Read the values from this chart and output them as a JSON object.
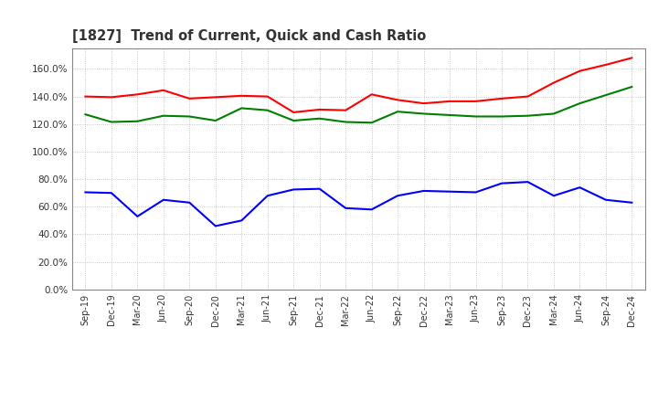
{
  "title": "[1827]  Trend of Current, Quick and Cash Ratio",
  "x_labels": [
    "Sep-19",
    "Dec-19",
    "Mar-20",
    "Jun-20",
    "Sep-20",
    "Dec-20",
    "Mar-21",
    "Jun-21",
    "Sep-21",
    "Dec-21",
    "Mar-22",
    "Jun-22",
    "Sep-22",
    "Dec-22",
    "Mar-23",
    "Jun-23",
    "Sep-23",
    "Dec-23",
    "Mar-24",
    "Jun-24",
    "Sep-24",
    "Dec-24"
  ],
  "current_ratio": [
    140.0,
    139.5,
    141.5,
    144.5,
    138.5,
    139.5,
    140.5,
    140.0,
    128.5,
    130.5,
    130.0,
    141.5,
    137.5,
    135.0,
    136.5,
    136.5,
    138.5,
    140.0,
    150.0,
    158.5,
    163.0,
    168.0
  ],
  "quick_ratio": [
    127.0,
    121.5,
    122.0,
    126.0,
    125.5,
    122.5,
    131.5,
    130.0,
    122.5,
    124.0,
    121.5,
    121.0,
    129.0,
    127.5,
    126.5,
    125.5,
    125.5,
    126.0,
    127.5,
    135.0,
    141.0,
    147.0
  ],
  "cash_ratio": [
    70.5,
    70.0,
    53.0,
    65.0,
    63.0,
    46.0,
    50.0,
    68.0,
    72.5,
    73.0,
    59.0,
    58.0,
    68.0,
    71.5,
    71.0,
    70.5,
    77.0,
    78.0,
    68.0,
    74.0,
    65.0,
    63.0
  ],
  "current_color": "#ff0000",
  "quick_color": "#008000",
  "cash_color": "#0000ff",
  "ylim": [
    0,
    175
  ],
  "yticks": [
    0,
    20,
    40,
    60,
    80,
    100,
    120,
    140,
    160
  ],
  "background_color": "#ffffff",
  "grid_color": "#999999",
  "title_color": "#333333"
}
